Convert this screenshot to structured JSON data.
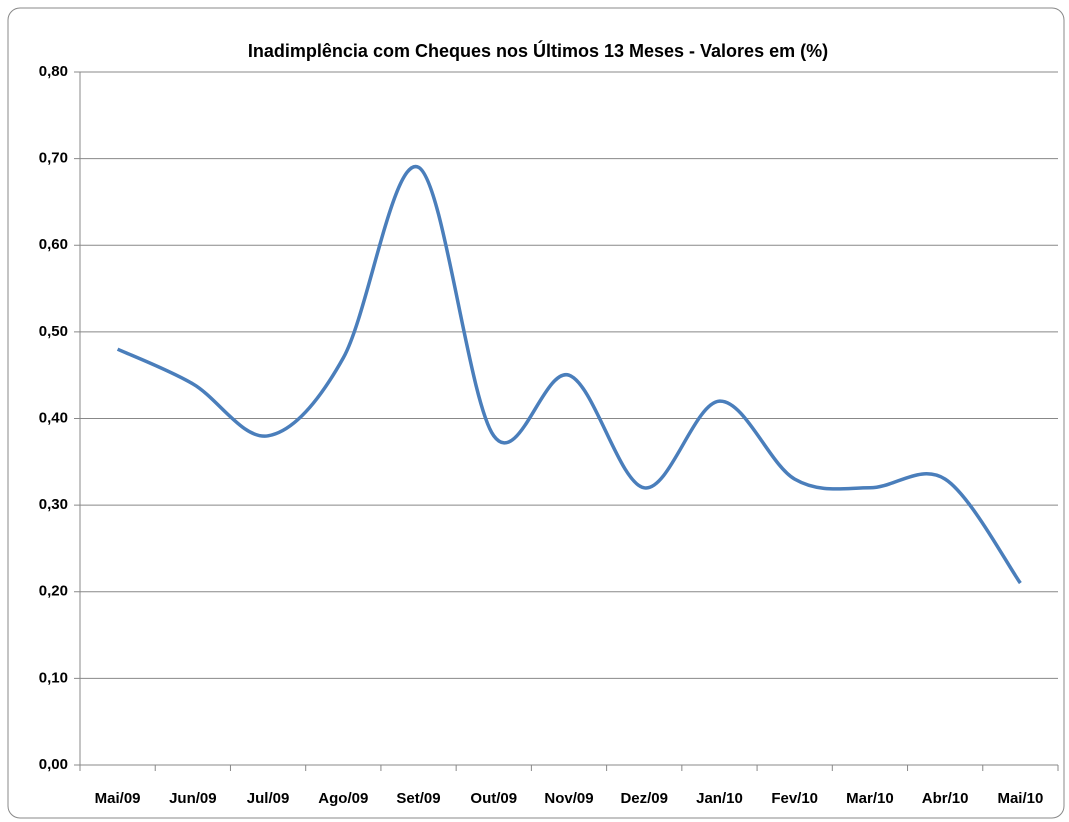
{
  "chart_data": {
    "type": "line",
    "title": "Inadimplência  com Cheques nos Últimos 13 Meses - Valores em (%)",
    "categories": [
      "Mai/09",
      "Jun/09",
      "Jul/09",
      "Ago/09",
      "Set/09",
      "Out/09",
      "Nov/09",
      "Dez/09",
      "Jan/10",
      "Fev/10",
      "Mar/10",
      "Abr/10",
      "Mai/10"
    ],
    "values": [
      0.48,
      0.44,
      0.38,
      0.47,
      0.69,
      0.38,
      0.45,
      0.32,
      0.42,
      0.33,
      0.32,
      0.33,
      0.21
    ],
    "color": "#4a7ebb",
    "ylim": [
      0,
      0.8
    ],
    "yticks": [
      {
        "value": 0,
        "label": "0,00"
      },
      {
        "value": 0.1,
        "label": "0,10"
      },
      {
        "value": 0.2,
        "label": "0,20"
      },
      {
        "value": 0.3,
        "label": "0,30"
      },
      {
        "value": 0.4,
        "label": "0,40"
      },
      {
        "value": 0.5,
        "label": "0,50"
      },
      {
        "value": 0.6,
        "label": "0,60"
      },
      {
        "value": 0.7,
        "label": "0,70"
      },
      {
        "value": 0.8,
        "label": "0,80"
      }
    ],
    "grid": true
  }
}
